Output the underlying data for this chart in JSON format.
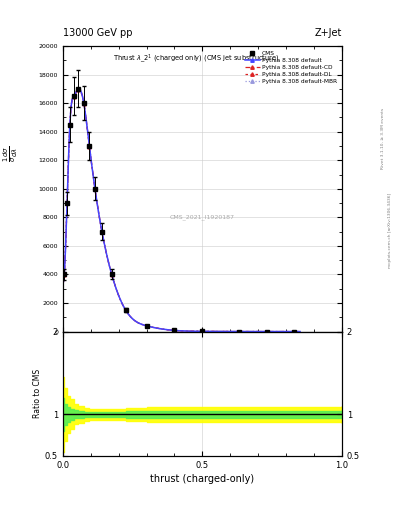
{
  "header_left": "13000 GeV pp",
  "header_right": "Z+Jet",
  "plot_subtitle": "Thrust $\\lambda\\_2^1$ (charged only) (CMS jet substructure)",
  "xlabel": "thrust (charged-only)",
  "ylabel_ratio": "Ratio to CMS",
  "right_text1": "Rivet 3.1.10, ≥ 3.3M events",
  "right_text2": "mcplots.cern.ch [arXiv:1306.3436]",
  "watermark": "CMS_2021_I1920187",
  "color_default": "#4444ff",
  "color_cd": "#dd2222",
  "color_dl": "#dd2222",
  "color_mbr": "#9999dd",
  "xlim": [
    0.0,
    1.0
  ],
  "ylim_main": [
    0,
    20000
  ],
  "ylim_ratio": [
    0.5,
    2.0
  ],
  "x_pts": [
    0.005,
    0.015,
    0.025,
    0.04,
    0.055,
    0.075,
    0.095,
    0.115,
    0.14,
    0.175,
    0.225,
    0.3,
    0.4,
    0.5,
    0.63,
    0.73,
    0.83
  ],
  "y_pts": [
    4000,
    9000,
    14500,
    16500,
    17000,
    16000,
    13000,
    10000,
    7000,
    4000,
    1500,
    400,
    80,
    15,
    3,
    0.8,
    0.2
  ],
  "y_err": [
    400,
    800,
    1200,
    1300,
    1300,
    1200,
    1000,
    800,
    600,
    350,
    150,
    45,
    12,
    3,
    0.8,
    0.3,
    0.1
  ],
  "yticks_main": [
    0,
    2000,
    4000,
    6000,
    8000,
    10000,
    12000,
    14000,
    16000,
    18000,
    20000
  ],
  "ytick_labels_main": [
    "0",
    "2000",
    "4000",
    "6000",
    "8000",
    "10000",
    "12000",
    "14000",
    "16000",
    "18000",
    "20000"
  ],
  "xticks": [
    0.0,
    0.5,
    1.0
  ],
  "yticks_ratio": [
    0.5,
    1.0,
    2.0
  ],
  "ratio_band_x": [
    0.0,
    0.005,
    0.015,
    0.025,
    0.04,
    0.055,
    0.075,
    0.095,
    0.115,
    0.14,
    0.175,
    0.225,
    0.3,
    0.4,
    0.5,
    1.0
  ],
  "yellow_lo": [
    0.55,
    0.68,
    0.78,
    0.82,
    0.88,
    0.9,
    0.92,
    0.93,
    0.93,
    0.93,
    0.93,
    0.92,
    0.91,
    0.91,
    0.91,
    0.9
  ],
  "yellow_hi": [
    1.45,
    1.32,
    1.22,
    1.18,
    1.12,
    1.1,
    1.08,
    1.07,
    1.07,
    1.07,
    1.07,
    1.08,
    1.09,
    1.09,
    1.09,
    1.1
  ],
  "green_lo": [
    0.8,
    0.87,
    0.91,
    0.93,
    0.95,
    0.96,
    0.97,
    0.97,
    0.97,
    0.97,
    0.97,
    0.96,
    0.96,
    0.96,
    0.96,
    0.95
  ],
  "green_hi": [
    1.2,
    1.13,
    1.09,
    1.07,
    1.05,
    1.04,
    1.03,
    1.03,
    1.03,
    1.03,
    1.03,
    1.04,
    1.04,
    1.04,
    1.04,
    1.05
  ]
}
